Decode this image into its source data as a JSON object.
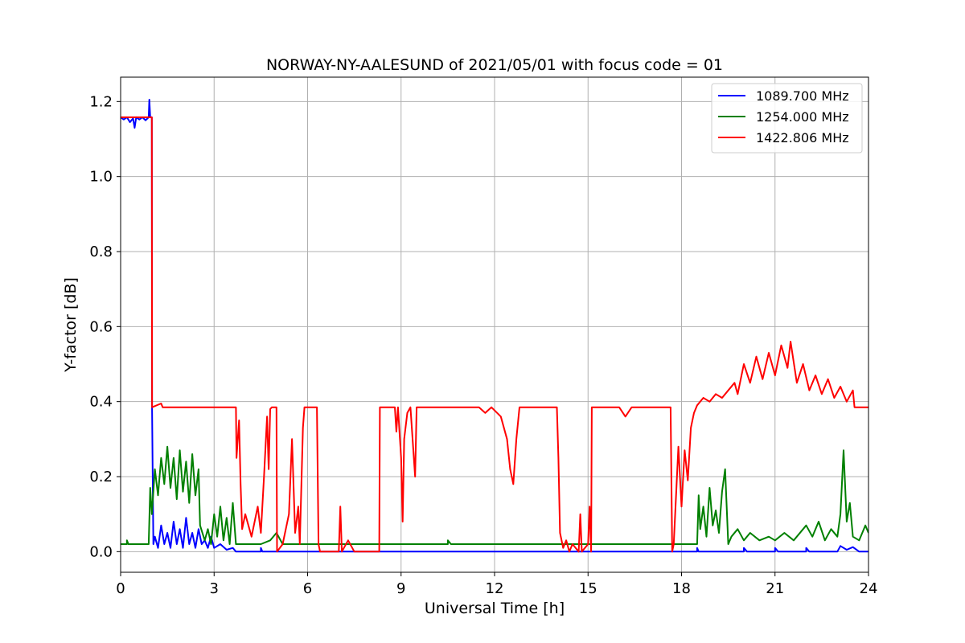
{
  "chart_data": {
    "type": "line",
    "title": "NORWAY-NY-AALESUND of 2021/05/01 with focus code = 01",
    "xlabel": "Universal Time [h]",
    "ylabel": "Y-factor [dB]",
    "xlim": [
      0,
      24
    ],
    "ylim": [
      -0.055,
      1.265
    ],
    "xticks": [
      0,
      3,
      6,
      9,
      12,
      15,
      18,
      21,
      24
    ],
    "yticks": [
      0.0,
      0.2,
      0.4,
      0.6,
      0.8,
      1.0,
      1.2
    ],
    "xtick_labels": [
      "0",
      "3",
      "6",
      "9",
      "12",
      "15",
      "18",
      "21",
      "24"
    ],
    "ytick_labels": [
      "0.0",
      "0.2",
      "0.4",
      "0.6",
      "0.8",
      "1.0",
      "1.2"
    ],
    "grid": true,
    "legend_position": "top-right",
    "series": [
      {
        "name": "1089.700 MHz",
        "color": "#0000ff",
        "points": [
          [
            0,
            1.158
          ],
          [
            0.1,
            1.152
          ],
          [
            0.2,
            1.158
          ],
          [
            0.3,
            1.145
          ],
          [
            0.4,
            1.155
          ],
          [
            0.45,
            1.13
          ],
          [
            0.5,
            1.158
          ],
          [
            0.6,
            1.152
          ],
          [
            0.7,
            1.158
          ],
          [
            0.8,
            1.15
          ],
          [
            0.9,
            1.158
          ],
          [
            0.92,
            1.205
          ],
          [
            0.95,
            1.158
          ],
          [
            1.0,
            1.158
          ],
          [
            1.01,
            0.38
          ],
          [
            1.05,
            0.02
          ],
          [
            1.1,
            0.04
          ],
          [
            1.2,
            0.01
          ],
          [
            1.3,
            0.07
          ],
          [
            1.4,
            0.02
          ],
          [
            1.5,
            0.05
          ],
          [
            1.6,
            0.01
          ],
          [
            1.7,
            0.08
          ],
          [
            1.8,
            0.02
          ],
          [
            1.9,
            0.06
          ],
          [
            2.0,
            0.01
          ],
          [
            2.1,
            0.09
          ],
          [
            2.2,
            0.02
          ],
          [
            2.3,
            0.05
          ],
          [
            2.4,
            0.01
          ],
          [
            2.5,
            0.06
          ],
          [
            2.6,
            0.02
          ],
          [
            2.7,
            0.03
          ],
          [
            2.8,
            0.01
          ],
          [
            2.9,
            0.04
          ],
          [
            3.0,
            0.01
          ],
          [
            3.2,
            0.02
          ],
          [
            3.4,
            0.005
          ],
          [
            3.6,
            0.01
          ],
          [
            3.7,
            0.0
          ],
          [
            4.5,
            0.0
          ],
          [
            4.5,
            0.01
          ],
          [
            4.55,
            0.0
          ],
          [
            12.0,
            0.0
          ],
          [
            18.5,
            0.0
          ],
          [
            18.5,
            0.01
          ],
          [
            18.55,
            0.0
          ],
          [
            20.0,
            0.0
          ],
          [
            20.0,
            0.01
          ],
          [
            20.1,
            0.0
          ],
          [
            21.0,
            0.0
          ],
          [
            21.0,
            0.01
          ],
          [
            21.1,
            0.0
          ],
          [
            22.0,
            0.0
          ],
          [
            22.0,
            0.01
          ],
          [
            22.1,
            0.0
          ],
          [
            23.0,
            0.0
          ],
          [
            23.1,
            0.015
          ],
          [
            23.3,
            0.005
          ],
          [
            23.5,
            0.012
          ],
          [
            23.7,
            0.0
          ],
          [
            24.0,
            0.0
          ]
        ]
      },
      {
        "name": "1254.000 MHz",
        "color": "#008000",
        "points": [
          [
            0,
            0.02
          ],
          [
            0.2,
            0.02
          ],
          [
            0.2,
            0.03
          ],
          [
            0.25,
            0.02
          ],
          [
            0.9,
            0.02
          ],
          [
            0.95,
            0.17
          ],
          [
            1.0,
            0.1
          ],
          [
            1.1,
            0.22
          ],
          [
            1.2,
            0.15
          ],
          [
            1.3,
            0.25
          ],
          [
            1.4,
            0.18
          ],
          [
            1.5,
            0.28
          ],
          [
            1.6,
            0.17
          ],
          [
            1.7,
            0.25
          ],
          [
            1.8,
            0.14
          ],
          [
            1.9,
            0.27
          ],
          [
            2.0,
            0.16
          ],
          [
            2.1,
            0.24
          ],
          [
            2.2,
            0.13
          ],
          [
            2.3,
            0.26
          ],
          [
            2.4,
            0.15
          ],
          [
            2.5,
            0.22
          ],
          [
            2.55,
            0.07
          ],
          [
            2.7,
            0.03
          ],
          [
            2.8,
            0.06
          ],
          [
            2.9,
            0.02
          ],
          [
            3.0,
            0.1
          ],
          [
            3.1,
            0.04
          ],
          [
            3.2,
            0.12
          ],
          [
            3.3,
            0.03
          ],
          [
            3.4,
            0.09
          ],
          [
            3.5,
            0.02
          ],
          [
            3.6,
            0.13
          ],
          [
            3.7,
            0.02
          ],
          [
            4.5,
            0.02
          ],
          [
            4.8,
            0.03
          ],
          [
            5.0,
            0.05
          ],
          [
            5.2,
            0.02
          ],
          [
            6.0,
            0.02
          ],
          [
            10.5,
            0.02
          ],
          [
            10.5,
            0.03
          ],
          [
            10.6,
            0.02
          ],
          [
            18.5,
            0.02
          ],
          [
            18.55,
            0.15
          ],
          [
            18.6,
            0.06
          ],
          [
            18.7,
            0.12
          ],
          [
            18.8,
            0.04
          ],
          [
            18.9,
            0.17
          ],
          [
            19.0,
            0.07
          ],
          [
            19.1,
            0.11
          ],
          [
            19.2,
            0.05
          ],
          [
            19.3,
            0.16
          ],
          [
            19.4,
            0.22
          ],
          [
            19.5,
            0.02
          ],
          [
            19.6,
            0.04
          ],
          [
            19.8,
            0.06
          ],
          [
            20.0,
            0.03
          ],
          [
            20.2,
            0.05
          ],
          [
            20.5,
            0.03
          ],
          [
            20.8,
            0.04
          ],
          [
            21.0,
            0.03
          ],
          [
            21.3,
            0.05
          ],
          [
            21.6,
            0.03
          ],
          [
            22.0,
            0.07
          ],
          [
            22.2,
            0.04
          ],
          [
            22.4,
            0.08
          ],
          [
            22.6,
            0.03
          ],
          [
            22.8,
            0.06
          ],
          [
            23.0,
            0.04
          ],
          [
            23.1,
            0.1
          ],
          [
            23.2,
            0.27
          ],
          [
            23.3,
            0.08
          ],
          [
            23.4,
            0.13
          ],
          [
            23.5,
            0.04
          ],
          [
            23.7,
            0.03
          ],
          [
            23.9,
            0.07
          ],
          [
            24.0,
            0.05
          ]
        ]
      },
      {
        "name": "1422.806 MHz",
        "color": "#ff0000",
        "points": [
          [
            0,
            1.158
          ],
          [
            0.98,
            1.158
          ],
          [
            1.0,
            1.158
          ],
          [
            1.01,
            0.385
          ],
          [
            1.3,
            0.395
          ],
          [
            1.35,
            0.385
          ],
          [
            3.7,
            0.385
          ],
          [
            3.72,
            0.25
          ],
          [
            3.8,
            0.35
          ],
          [
            3.85,
            0.18
          ],
          [
            3.9,
            0.06
          ],
          [
            4.0,
            0.1
          ],
          [
            4.2,
            0.04
          ],
          [
            4.4,
            0.12
          ],
          [
            4.5,
            0.05
          ],
          [
            4.6,
            0.2
          ],
          [
            4.7,
            0.36
          ],
          [
            4.75,
            0.22
          ],
          [
            4.8,
            0.38
          ],
          [
            4.85,
            0.385
          ],
          [
            5.0,
            0.385
          ],
          [
            5.02,
            0.0
          ],
          [
            5.2,
            0.02
          ],
          [
            5.4,
            0.1
          ],
          [
            5.5,
            0.3
          ],
          [
            5.6,
            0.05
          ],
          [
            5.7,
            0.12
          ],
          [
            5.75,
            0.02
          ],
          [
            5.85,
            0.33
          ],
          [
            5.9,
            0.385
          ],
          [
            6.3,
            0.385
          ],
          [
            6.35,
            0.02
          ],
          [
            6.4,
            0.0
          ],
          [
            7.0,
            0.0
          ],
          [
            7.05,
            0.12
          ],
          [
            7.1,
            0.0
          ],
          [
            7.3,
            0.03
          ],
          [
            7.5,
            0.0
          ],
          [
            8.3,
            0.0
          ],
          [
            8.32,
            0.385
          ],
          [
            8.8,
            0.385
          ],
          [
            8.85,
            0.32
          ],
          [
            8.9,
            0.385
          ],
          [
            9.0,
            0.25
          ],
          [
            9.05,
            0.08
          ],
          [
            9.1,
            0.3
          ],
          [
            9.2,
            0.37
          ],
          [
            9.3,
            0.385
          ],
          [
            9.45,
            0.2
          ],
          [
            9.5,
            0.385
          ],
          [
            11.5,
            0.385
          ],
          [
            11.7,
            0.37
          ],
          [
            11.9,
            0.385
          ],
          [
            12.2,
            0.36
          ],
          [
            12.4,
            0.3
          ],
          [
            12.5,
            0.22
          ],
          [
            12.6,
            0.18
          ],
          [
            12.7,
            0.3
          ],
          [
            12.8,
            0.385
          ],
          [
            14.0,
            0.385
          ],
          [
            14.05,
            0.25
          ],
          [
            14.1,
            0.05
          ],
          [
            14.2,
            0.01
          ],
          [
            14.3,
            0.03
          ],
          [
            14.4,
            0.0
          ],
          [
            14.5,
            0.02
          ],
          [
            14.7,
            0.0
          ],
          [
            14.75,
            0.1
          ],
          [
            14.8,
            0.0
          ],
          [
            15.0,
            0.02
          ],
          [
            15.05,
            0.12
          ],
          [
            15.1,
            0.0
          ],
          [
            15.12,
            0.385
          ],
          [
            16.0,
            0.385
          ],
          [
            16.2,
            0.36
          ],
          [
            16.4,
            0.385
          ],
          [
            17.65,
            0.385
          ],
          [
            17.7,
            0.0
          ],
          [
            17.75,
            0.02
          ],
          [
            17.9,
            0.28
          ],
          [
            18.0,
            0.12
          ],
          [
            18.1,
            0.27
          ],
          [
            18.2,
            0.19
          ],
          [
            18.3,
            0.33
          ],
          [
            18.4,
            0.37
          ],
          [
            18.5,
            0.39
          ],
          [
            18.7,
            0.41
          ],
          [
            18.9,
            0.4
          ],
          [
            19.1,
            0.42
          ],
          [
            19.3,
            0.41
          ],
          [
            19.5,
            0.43
          ],
          [
            19.7,
            0.45
          ],
          [
            19.8,
            0.42
          ],
          [
            20.0,
            0.5
          ],
          [
            20.2,
            0.45
          ],
          [
            20.4,
            0.52
          ],
          [
            20.6,
            0.46
          ],
          [
            20.8,
            0.53
          ],
          [
            21.0,
            0.47
          ],
          [
            21.2,
            0.55
          ],
          [
            21.4,
            0.49
          ],
          [
            21.5,
            0.56
          ],
          [
            21.7,
            0.45
          ],
          [
            21.9,
            0.5
          ],
          [
            22.1,
            0.43
          ],
          [
            22.3,
            0.47
          ],
          [
            22.5,
            0.42
          ],
          [
            22.7,
            0.46
          ],
          [
            22.9,
            0.41
          ],
          [
            23.1,
            0.44
          ],
          [
            23.3,
            0.4
          ],
          [
            23.5,
            0.43
          ],
          [
            23.55,
            0.385
          ],
          [
            24.0,
            0.385
          ]
        ]
      }
    ]
  }
}
